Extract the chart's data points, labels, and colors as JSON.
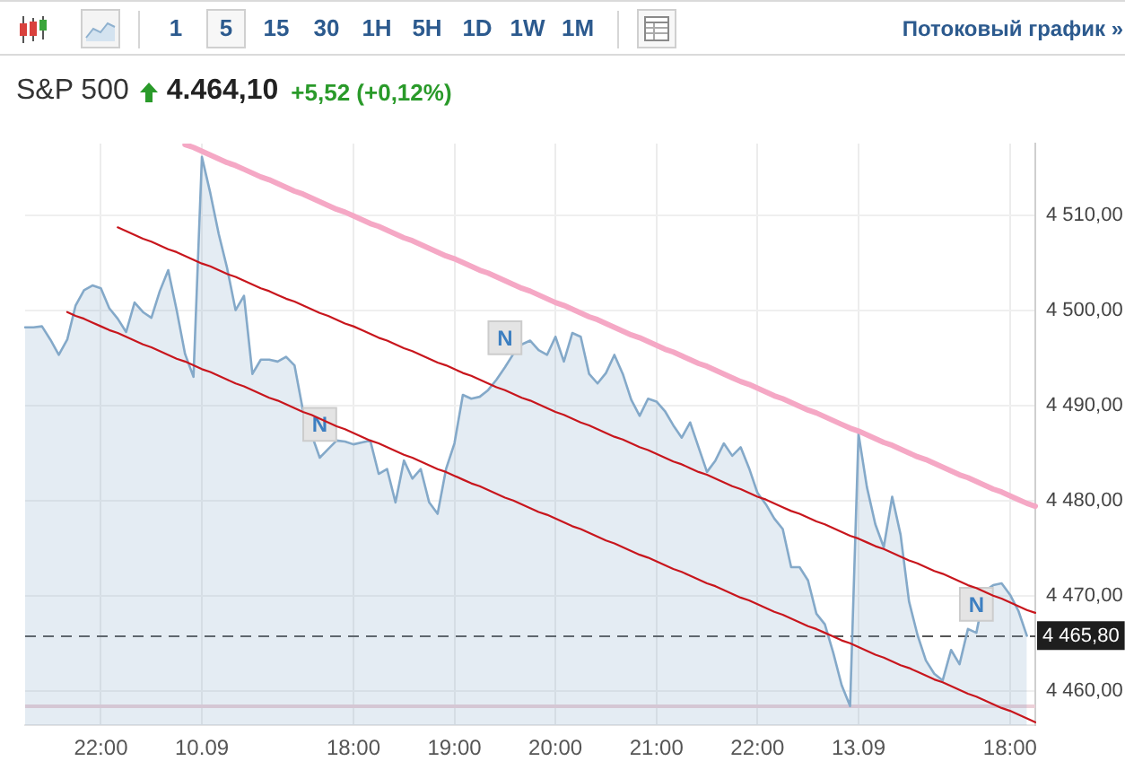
{
  "chart_data": {
    "type": "area",
    "title": "S&P 500",
    "subtitle": "4.464,10 +5,52 (+0,12%)",
    "annotations": [
      "1",
      "5",
      "15",
      "30",
      "1H",
      "5H",
      "1D",
      "1W",
      "1M",
      "Потоковый график »"
    ],
    "categories": [
      null,
      null,
      null,
      null,
      null,
      null,
      null,
      null,
      null,
      "22:00",
      null,
      null,
      null,
      null,
      null,
      null,
      null,
      null,
      null,
      null,
      null,
      "10.09",
      null,
      null,
      null,
      null,
      null,
      null,
      null,
      null,
      null,
      null,
      null,
      null,
      null,
      null,
      null,
      null,
      null,
      "18:00",
      null,
      null,
      null,
      null,
      null,
      null,
      null,
      null,
      null,
      null,
      null,
      "19:00",
      null,
      null,
      null,
      null,
      null,
      null,
      null,
      null,
      null,
      null,
      null,
      "20:00",
      null,
      null,
      null,
      null,
      null,
      null,
      null,
      null,
      null,
      null,
      null,
      "21:00",
      null,
      null,
      null,
      null,
      null,
      null,
      null,
      null,
      null,
      null,
      null,
      "22:00",
      null,
      null,
      null,
      null,
      null,
      null,
      null,
      null,
      null,
      null,
      null,
      "13.09",
      null,
      null,
      null,
      null,
      null,
      null,
      null,
      null,
      null,
      null,
      null,
      null,
      null,
      null,
      null,
      null,
      null,
      "18:00",
      null,
      null,
      null
    ],
    "series": [
      {
        "color": "#84a9c9",
        "values": [
          4498.2,
          4498.2,
          4498.3,
          4496.9,
          4495.3,
          4496.9,
          4500.5,
          4502.1,
          4502.6,
          4502.3,
          4500.2,
          4499.1,
          4497.7,
          4500.8,
          4499.8,
          4499.2,
          4502.0,
          4504.2,
          4500.0,
          4495.4,
          4493.0,
          4516.1,
          4512.3,
          4508.0,
          4504.4,
          4500.0,
          4501.5,
          4493.3,
          4494.8,
          4494.8,
          4494.6,
          4495.1,
          4494.2,
          4489.5,
          4487.0,
          4484.5,
          4485.4,
          4486.3,
          4486.2,
          4485.9,
          4486.1,
          4486.3,
          4482.8,
          4483.3,
          4479.8,
          4484.2,
          4482.3,
          4483.3,
          4479.8,
          4478.6,
          4483.3,
          4486.0,
          4491.1,
          4490.7,
          4490.9,
          4491.6,
          4492.7,
          4494.0,
          4495.4,
          4496.4,
          4496.8,
          4495.8,
          4495.3,
          4497.2,
          4494.6,
          4497.6,
          4497.2,
          4493.3,
          4492.3,
          4493.4,
          4495.3,
          4493.3,
          4490.6,
          4488.9,
          4490.7,
          4490.4,
          4489.4,
          4487.9,
          4486.6,
          4488.2,
          4485.6,
          4483.0,
          4484.2,
          4486.0,
          4484.7,
          4485.6,
          4483.4,
          4480.8,
          4479.6,
          4478.1,
          4477.0,
          4473.0,
          4473.0,
          4471.6,
          4468.1,
          4467.0,
          4464.0,
          4460.6,
          4458.4,
          4487.0,
          4481.4,
          4477.5,
          4475.1,
          4480.4,
          4476.4,
          4469.4,
          4465.9,
          4463.2,
          4461.8,
          4461.1,
          4464.3,
          4462.8,
          4466.5,
          4466.1,
          4470.5,
          4471.1,
          4471.3,
          4470.1,
          4468.4,
          4465.8,
          null
        ]
      },
      {
        "type": "line",
        "color": "#f5a8c5",
        "values": [
          null,
          null,
          null,
          null,
          null,
          null,
          null,
          null,
          null,
          null,
          null,
          null,
          null,
          null,
          null,
          null,
          null,
          null,
          null,
          4517.4,
          4517.1,
          4516.7,
          4516.3,
          4515.9,
          4515.5,
          4515.2,
          4514.8,
          4514.4,
          4514.0,
          4513.7,
          4513.3,
          4512.9,
          4512.5,
          4512.2,
          4511.8,
          4511.4,
          4511.0,
          4510.6,
          4510.3,
          4509.9,
          4509.5,
          4509.1,
          4508.8,
          4508.4,
          4508.0,
          4507.6,
          4507.3,
          4506.9,
          4506.5,
          4506.1,
          4505.7,
          4505.4,
          4505.0,
          4504.6,
          4504.2,
          4503.9,
          4503.5,
          4503.1,
          4502.7,
          4502.3,
          4502.0,
          4501.6,
          4501.2,
          4500.8,
          4500.5,
          4500.1,
          4499.7,
          4499.3,
          4499.0,
          4498.6,
          4498.2,
          4497.8,
          4497.4,
          4497.1,
          4496.7,
          4496.3,
          4495.9,
          4495.6,
          4495.2,
          4494.8,
          4494.4,
          4494.1,
          4493.7,
          4493.3,
          4492.9,
          4492.5,
          4492.2,
          4491.8,
          4491.4,
          4491.0,
          4490.7,
          4490.3,
          4489.9,
          4489.5,
          4489.2,
          4488.8,
          4488.4,
          4488.0,
          4487.6,
          4487.3,
          4486.9,
          4486.5,
          4486.1,
          4485.8,
          4485.4,
          4485.0,
          4484.6,
          4484.3,
          4483.9,
          4483.5,
          4483.1,
          4482.7,
          4482.4,
          4482.0,
          4481.6,
          4481.2,
          4480.9,
          4480.5,
          4480.1,
          4479.7,
          4479.4
        ]
      },
      {
        "type": "line",
        "color": "#c8161d",
        "values": [
          null,
          null,
          null,
          null,
          null,
          null,
          null,
          null,
          null,
          null,
          null,
          4508.7,
          4508.3,
          4507.9,
          4507.5,
          4507.2,
          4506.8,
          4506.4,
          4506.1,
          4505.7,
          4505.3,
          4504.9,
          4504.6,
          4504.2,
          4503.8,
          4503.5,
          4503.1,
          4502.7,
          4502.3,
          4502.0,
          4501.6,
          4501.2,
          4500.9,
          4500.5,
          4500.1,
          4499.7,
          4499.4,
          4499.0,
          4498.6,
          4498.3,
          4497.9,
          4497.5,
          4497.1,
          4496.8,
          4496.4,
          4496.0,
          4495.7,
          4495.3,
          4494.9,
          4494.5,
          4494.2,
          4493.8,
          4493.4,
          4493.1,
          4492.7,
          4492.3,
          4491.9,
          4491.6,
          4491.2,
          4490.8,
          4490.5,
          4490.1,
          4489.7,
          4489.3,
          4489.0,
          4488.6,
          4488.2,
          4487.9,
          4487.5,
          4487.1,
          4486.7,
          4486.4,
          4486.0,
          4485.6,
          4485.3,
          4484.9,
          4484.5,
          4484.1,
          4483.8,
          4483.4,
          4483.0,
          4482.7,
          4482.3,
          4481.9,
          4481.5,
          4481.2,
          4480.8,
          4480.4,
          4480.1,
          4479.7,
          4479.3,
          4478.9,
          4478.6,
          4478.2,
          4477.8,
          4477.5,
          4477.1,
          4476.7,
          4476.3,
          4476.0,
          4475.6,
          4475.2,
          4474.9,
          4474.5,
          4474.1,
          4473.7,
          4473.4,
          4473.0,
          4472.6,
          4472.3,
          4471.9,
          4471.5,
          4471.1,
          4470.8,
          4470.4,
          4470.0,
          4469.7,
          4469.3,
          4468.9,
          4468.5,
          4468.2
        ]
      },
      {
        "type": "line",
        "color": "#c8161d",
        "values": [
          null,
          null,
          null,
          null,
          null,
          4499.8,
          4499.4,
          4499.1,
          4498.7,
          4498.3,
          4497.9,
          4497.6,
          4497.2,
          4496.8,
          4496.4,
          4496.1,
          4495.7,
          4495.3,
          4494.9,
          4494.6,
          4494.2,
          4493.8,
          4493.5,
          4493.1,
          4492.7,
          4492.3,
          4492.0,
          4491.6,
          4491.2,
          4490.8,
          4490.5,
          4490.1,
          4489.7,
          4489.3,
          4489.0,
          4488.6,
          4488.2,
          4487.8,
          4487.5,
          4487.1,
          4486.7,
          4486.3,
          4486.0,
          4485.6,
          4485.2,
          4484.8,
          4484.5,
          4484.1,
          4483.7,
          4483.3,
          4483.0,
          4482.6,
          4482.2,
          4481.8,
          4481.5,
          4481.1,
          4480.7,
          4480.3,
          4480.0,
          4479.6,
          4479.2,
          4478.8,
          4478.5,
          4478.1,
          4477.7,
          4477.3,
          4477.0,
          4476.6,
          4476.2,
          4475.8,
          4475.5,
          4475.1,
          4474.7,
          4474.3,
          4474.0,
          4473.6,
          4473.2,
          4472.8,
          4472.5,
          4472.1,
          4471.7,
          4471.3,
          4471.0,
          4470.6,
          4470.2,
          4469.8,
          4469.5,
          4469.1,
          4468.7,
          4468.3,
          4468.0,
          4467.6,
          4467.2,
          4466.8,
          4466.5,
          4466.1,
          4465.7,
          4465.3,
          4465.0,
          4464.6,
          4464.2,
          4463.8,
          4463.5,
          4463.1,
          4462.7,
          4462.4,
          4462.0,
          4461.6,
          4461.2,
          4460.9,
          4460.5,
          4460.1,
          4459.7,
          4459.4,
          4459.0,
          4458.6,
          4458.2,
          4457.9,
          4457.5,
          4457.1,
          4456.7
        ]
      },
      {
        "type": "scatter",
        "name": "N",
        "marker": "square",
        "color": "#e4e4e4",
        "values": [
          null,
          null,
          null,
          null,
          null,
          null,
          null,
          null,
          null,
          null,
          null,
          null,
          null,
          null,
          null,
          null,
          null,
          null,
          null,
          null,
          null,
          null,
          null,
          null,
          null,
          null,
          null,
          null,
          null,
          null,
          null,
          null,
          null,
          null,
          null,
          4488.0,
          null,
          null,
          null,
          null,
          null,
          null,
          null,
          null,
          null,
          null,
          null,
          null,
          null,
          null,
          null,
          null,
          null,
          null,
          null,
          null,
          null,
          4497.1,
          null,
          null,
          null,
          null,
          null,
          null,
          null,
          null,
          null,
          null,
          null,
          null,
          null,
          null,
          null,
          null,
          null,
          null,
          null,
          null,
          null,
          null,
          null,
          null,
          null,
          null,
          null,
          null,
          null,
          null,
          null,
          null,
          null,
          null,
          null,
          null,
          null,
          null,
          null,
          null,
          null,
          null,
          null,
          null,
          null,
          null,
          null,
          null,
          null,
          null,
          null,
          null,
          null,
          null,
          null,
          4469.1,
          null,
          null,
          null,
          null,
          null,
          null,
          null
        ]
      }
    ],
    "ylim": [
      4456.4,
      4517.5
    ],
    "yticks": [
      {
        "value": 4460,
        "label": "4 460,00"
      },
      {
        "value": 4470,
        "label": "4 470,00"
      },
      {
        "value": 4480,
        "label": "4 480,00"
      },
      {
        "value": 4490,
        "label": "4 490,00"
      },
      {
        "value": 4500,
        "label": "4 500,00"
      },
      {
        "value": 4510,
        "label": "4 510,00"
      }
    ],
    "ref_lines": [
      {
        "axis": "y",
        "value": 4465.8,
        "label": "4 465,80",
        "color": "#555555",
        "line_style": "dashed"
      },
      {
        "axis": "y",
        "value": 4458.4,
        "color": "#ecd0d8"
      }
    ],
    "grid": true
  }
}
